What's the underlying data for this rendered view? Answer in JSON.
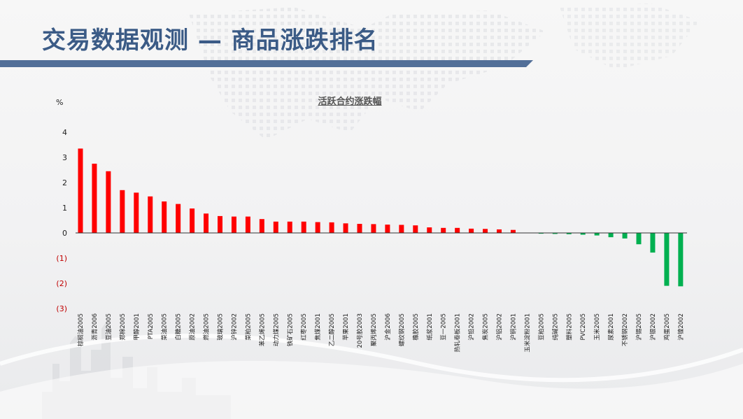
{
  "header": {
    "title": "交易数据观测 — 商品涨跌排名"
  },
  "colors": {
    "accent": "#526f98",
    "title": "#3b5b86",
    "up": "#ff0000",
    "down": "#00b050",
    "negative_tick": "#c00000"
  },
  "chart_data": {
    "type": "bar",
    "title": "活跃合约涨跌幅",
    "ylabel": "%",
    "ylim": [
      -3,
      4
    ],
    "yticks": [
      {
        "value": 4,
        "label": "4"
      },
      {
        "value": 3,
        "label": "3"
      },
      {
        "value": 2,
        "label": "2"
      },
      {
        "value": 1,
        "label": "1"
      },
      {
        "value": 0,
        "label": "0"
      },
      {
        "value": -1,
        "label": "(1)"
      },
      {
        "value": -2,
        "label": "(2)"
      },
      {
        "value": -3,
        "label": "(3)"
      }
    ],
    "grid": false,
    "legend": "none",
    "categories": [
      "棕榈油2005",
      "沥青2006",
      "豆油2005",
      "郑棉2005",
      "甲醇2001",
      "PTA2005",
      "菜油2005",
      "白糖2005",
      "原油2002",
      "燃油2005",
      "玻璃2005",
      "沪锌2002",
      "菜粕2005",
      "苯乙烯2005",
      "动力煤2005",
      "铁矿石2005",
      "红枣2005",
      "焦煤2001",
      "乙二醇2005",
      "苹果2001",
      "20号胶2003",
      "聚丙烯2005",
      "沪金2006",
      "螺纹钢2005",
      "橡胶2005",
      "纸浆2001",
      "豆一2005",
      "热轧卷板2001",
      "沪铅2002",
      "焦炭2005",
      "沪铝2002",
      "沪铜2001",
      "玉米淀粉2001",
      "豆粕2005",
      "纯碱2005",
      "塑料2005",
      "PVC2005",
      "玉米2005",
      "尿素2001",
      "不锈钢2002",
      "沪锡2005",
      "沪银2002",
      "鸡蛋2005",
      "沪镍2002"
    ],
    "values": [
      3.35,
      2.75,
      2.45,
      1.7,
      1.6,
      1.45,
      1.25,
      1.15,
      0.97,
      0.77,
      0.67,
      0.65,
      0.65,
      0.55,
      0.45,
      0.45,
      0.45,
      0.43,
      0.42,
      0.38,
      0.36,
      0.35,
      0.33,
      0.32,
      0.3,
      0.22,
      0.2,
      0.2,
      0.17,
      0.16,
      0.14,
      0.12,
      0.0,
      -0.03,
      -0.04,
      -0.05,
      -0.07,
      -0.1,
      -0.17,
      -0.22,
      -0.45,
      -0.78,
      -2.1,
      -2.12
    ]
  }
}
